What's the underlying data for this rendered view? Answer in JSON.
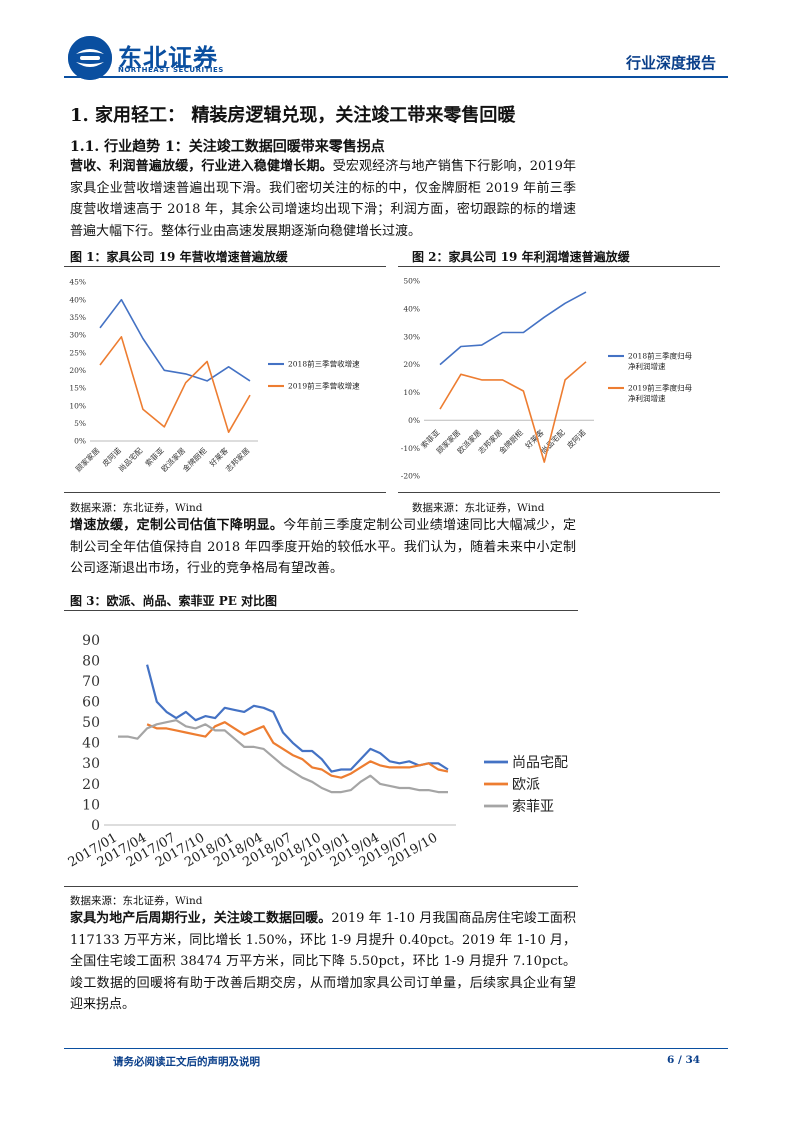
{
  "header": {
    "logo_cn": "东北证券",
    "logo_en": "NORTHEAST SECURITIES",
    "report_type": "行业深度报告"
  },
  "section_title": "1.  家用轻工：  精装房逻辑兑现，关注竣工带来零售回暖",
  "subsection_title": "1.1.   行业趋势 1：关注竣工数据回暖带来零售拐点",
  "para1": {
    "lead": "营收、利润普遍放缓，行业进入稳健增长期。",
    "body": "受宏观经济与地产销售下行影响，2019年家具企业营收增速普遍出现下滑。我们密切关注的标的中，仅金牌厨柜 2019 年前三季度营收增速高于 2018 年，其余公司增速均出现下滑；利润方面，密切跟踪的标的增速普遍大幅下行。整体行业由高速发展期逐渐向稳健增长过渡。"
  },
  "fig1": {
    "title": "图 1：家具公司 19 年营收增速普遍放缓",
    "source": "数据来源：东北证券，Wind"
  },
  "fig2": {
    "title": "图 2：家具公司 19 年利润增速普遍放缓",
    "source": "数据来源：东北证券，Wind"
  },
  "para2": {
    "lead": "增速放缓，定制公司估值下降明显。",
    "body": "今年前三季度定制公司业绩增速同比大幅减少，定制公司全年估值保持自 2018 年四季度开始的较低水平。我们认为，随着未来中小定制公司逐渐退出市场，行业的竞争格局有望改善。"
  },
  "fig3": {
    "title": "图 3：欧派、尚品、索菲亚 PE 对比图",
    "source": "数据来源：东北证券，Wind"
  },
  "para3": {
    "lead": "家具为地产后周期行业，关注竣工数据回暖。",
    "body": "2019 年 1-10 月我国商品房住宅竣工面积 117133 万平方米，同比增长 1.50%，环比 1-9 月提升 0.40pct。2019 年 1-10 月，全国住宅竣工面积 38474 万平方米，同比下降 5.50pct，环比 1-9 月提升 7.10pct。竣工数据的回暖将有助于改善后期交房，从而增加家具公司订单量，后续家具企业有望迎来拐点。"
  },
  "footer": {
    "disclaimer": "请务必阅读正文后的声明及说明",
    "page": "6 / 34"
  },
  "colors": {
    "brand": "#0a4fa0",
    "blue": "#4472c4",
    "orange": "#ed7d31",
    "gray": "#a5a5a5"
  },
  "chart_data": [
    {
      "type": "line",
      "categories": [
        "顾家家居",
        "皮阿诺",
        "尚品宅配",
        "索菲亚",
        "欧派家居",
        "金牌厨柜",
        "好莱客",
        "志邦家居"
      ],
      "series": [
        {
          "name": "2018前三季营收增速",
          "values": [
            32,
            40,
            29,
            20,
            19,
            17,
            21,
            17
          ]
        },
        {
          "name": "2019前三季营收增速",
          "values": [
            21.5,
            29.5,
            9,
            4,
            16.5,
            22.5,
            2.5,
            13
          ]
        }
      ],
      "ylim": [
        0,
        45
      ],
      "yticks": [
        "0%",
        "5%",
        "10%",
        "15%",
        "20%",
        "25%",
        "30%",
        "35%",
        "40%",
        "45%"
      ],
      "grid": false,
      "legend": "right"
    },
    {
      "type": "line",
      "categories": [
        "索菲亚",
        "顾家家居",
        "欧派家居",
        "志邦家居",
        "金牌厨柜",
        "好莱客",
        "尚品宅配",
        "皮阿诺"
      ],
      "series": [
        {
          "name": "2018前三季度归母净利润增速",
          "values": [
            20,
            26.5,
            27,
            31.5,
            31.5,
            37,
            42,
            46
          ]
        },
        {
          "name": "2019前三季度归母净利润增速",
          "values": [
            4,
            16.5,
            14.5,
            14.5,
            10.5,
            -15,
            14.5,
            21
          ]
        }
      ],
      "ylim": [
        -20,
        50
      ],
      "yticks": [
        "-20%",
        "-10%",
        "0%",
        "10%",
        "20%",
        "30%",
        "40%",
        "50%"
      ],
      "grid": false,
      "legend": "right"
    },
    {
      "type": "line",
      "x": [
        "2017/01",
        "2017/02",
        "2017/03",
        "2017/04",
        "2017/05",
        "2017/06",
        "2017/07",
        "2017/08",
        "2017/09",
        "2017/10",
        "2017/11",
        "2017/12",
        "2018/01",
        "2018/02",
        "2018/03",
        "2018/04",
        "2018/05",
        "2018/06",
        "2018/07",
        "2018/08",
        "2018/09",
        "2018/10",
        "2018/11",
        "2018/12",
        "2019/01",
        "2019/02",
        "2019/03",
        "2019/04",
        "2019/05",
        "2019/06",
        "2019/07",
        "2019/08",
        "2019/09",
        "2019/10",
        "2019/11"
      ],
      "xticks": [
        "2017/01",
        "2017/04",
        "2017/07",
        "2017/10",
        "2018/01",
        "2018/04",
        "2018/07",
        "2018/10",
        "2019/01",
        "2019/04",
        "2019/07",
        "2019/10"
      ],
      "series": [
        {
          "name": "尚品宅配",
          "values": [
            null,
            null,
            null,
            78,
            60,
            55,
            52,
            55,
            51,
            53,
            52,
            57,
            56,
            55,
            58,
            57,
            55,
            45,
            40,
            36,
            36,
            32,
            26,
            27,
            27,
            32,
            37,
            35,
            31,
            30,
            31,
            29,
            30,
            30,
            27
          ]
        },
        {
          "name": "欧派",
          "values": [
            null,
            null,
            null,
            49,
            47,
            47,
            46,
            45,
            44,
            43,
            48,
            50,
            47,
            44,
            46,
            48,
            40,
            37,
            34,
            32,
            28,
            27,
            24,
            23,
            25,
            28,
            31,
            29,
            28,
            28,
            28,
            29,
            30,
            27,
            26
          ]
        },
        {
          "name": "索菲亚",
          "values": [
            43,
            43,
            42,
            47,
            49,
            50,
            51,
            48,
            47,
            49,
            46,
            46,
            42,
            38,
            38,
            37,
            33,
            29,
            26,
            23,
            21,
            18,
            16,
            16,
            17,
            21,
            24,
            20,
            19,
            18,
            18,
            17,
            17,
            16,
            16
          ]
        }
      ],
      "ylim": [
        0,
        90
      ],
      "yticks": [
        "0",
        "10",
        "20",
        "30",
        "40",
        "50",
        "60",
        "70",
        "80",
        "90"
      ],
      "grid": false,
      "legend": "right"
    }
  ]
}
